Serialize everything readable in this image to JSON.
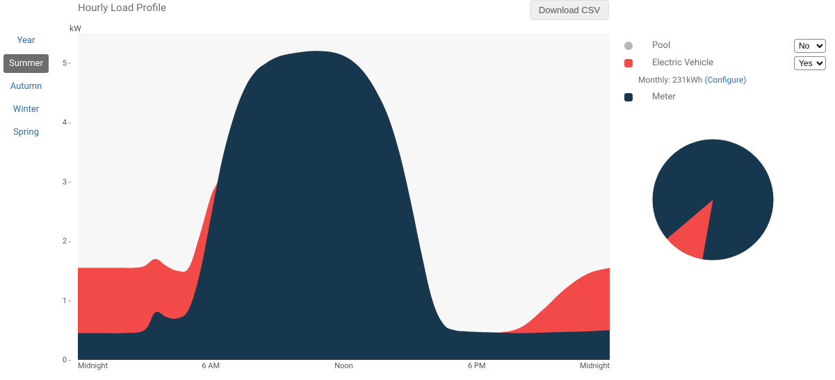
{
  "title": "Hourly Load Profile",
  "download_label": "Download CSV",
  "y_unit": "kW",
  "seasons": [
    {
      "label": "Year",
      "active": false
    },
    {
      "label": "Summer",
      "active": true
    },
    {
      "label": "Autumn",
      "active": false
    },
    {
      "label": "Winter",
      "active": false
    },
    {
      "label": "Spring",
      "active": false
    }
  ],
  "chart": {
    "type": "area",
    "background": "#f7f7f7",
    "ylim": [
      0,
      5.5
    ],
    "ytick_step": 1,
    "yticks": [
      0,
      1,
      2,
      3,
      4,
      5
    ],
    "xticks": [
      {
        "pos": 0,
        "label": "Midnight"
      },
      {
        "pos": 6,
        "label": "6 AM"
      },
      {
        "pos": 12,
        "label": "Noon"
      },
      {
        "pos": 18,
        "label": "6 PM"
      },
      {
        "pos": 24,
        "label": "Midnight"
      }
    ],
    "series": [
      {
        "name": "Meter",
        "color": "#17374f",
        "values": {
          "0": 0.45,
          "1": 0.45,
          "2": 0.45,
          "3": 0.5,
          "3.5": 0.8,
          "4": 0.72,
          "4.5": 0.7,
          "5": 0.85,
          "5.5": 1.45,
          "6": 2.4,
          "6.5": 3.35,
          "7": 4.05,
          "7.5": 4.55,
          "8": 4.85,
          "8.5": 5.0,
          "9": 5.1,
          "9.5": 5.15,
          "10": 5.18,
          "10.5": 5.2,
          "11": 5.2,
          "11.5": 5.18,
          "12": 5.12,
          "12.5": 5.0,
          "13": 4.8,
          "13.5": 4.5,
          "14": 4.1,
          "14.5": 3.5,
          "15": 2.7,
          "15.5": 1.8,
          "16": 1.0,
          "16.5": 0.6,
          "17": 0.5,
          "17.5": 0.48,
          "18": 0.47,
          "19": 0.46,
          "20": 0.45,
          "21": 0.46,
          "22": 0.47,
          "23": 0.48,
          "24": 0.5
        }
      },
      {
        "name": "Electric Vehicle",
        "color": "#f24a49",
        "values": {
          "0": 1.55,
          "1": 1.55,
          "2": 1.55,
          "2.5": 1.55,
          "3": 1.58,
          "3.5": 1.7,
          "4": 1.58,
          "4.5": 1.5,
          "5": 1.55,
          "5.5": 2.1,
          "6": 2.75,
          "6.3": 3.0,
          "6.5": 3.35,
          "7": 4.05,
          "7.5": 4.55,
          "8": 4.85,
          "8.5": 5.0,
          "9": 5.1,
          "9.5": 5.15,
          "10": 5.18,
          "10.5": 5.2,
          "11": 5.2,
          "11.5": 5.18,
          "12": 5.12,
          "12.5": 5.0,
          "13": 4.8,
          "13.5": 4.5,
          "14": 4.1,
          "14.5": 3.5,
          "15": 2.7,
          "15.5": 1.8,
          "16": 1.0,
          "16.5": 0.6,
          "17": 0.5,
          "17.5": 0.48,
          "18": 0.47,
          "19": 0.46,
          "20": 0.55,
          "21": 0.85,
          "22": 1.2,
          "23": 1.45,
          "24": 1.55
        }
      }
    ]
  },
  "legend": {
    "rows": [
      {
        "name": "pool",
        "label": "Pool",
        "color": "#b9b9b9",
        "shape": "circle",
        "select": "No",
        "options": [
          "No",
          "Yes"
        ]
      },
      {
        "name": "ev",
        "label": "Electric Vehicle",
        "color": "#f24a49",
        "shape": "square",
        "select": "Yes",
        "options": [
          "No",
          "Yes"
        ]
      },
      {
        "name": "ev-info",
        "info": true,
        "text_prefix": "Monthly: ",
        "value": "231kWh",
        "config_label": "(Configure)"
      },
      {
        "name": "meter",
        "label": "Meter",
        "color": "#17374f",
        "shape": "square"
      }
    ]
  },
  "pie": {
    "type": "pie",
    "radius": 87,
    "slices": [
      {
        "name": "Electric Vehicle",
        "color": "#f24a49",
        "fraction": 0.11
      },
      {
        "name": "Meter",
        "color": "#17374f",
        "fraction": 0.89
      }
    ]
  }
}
